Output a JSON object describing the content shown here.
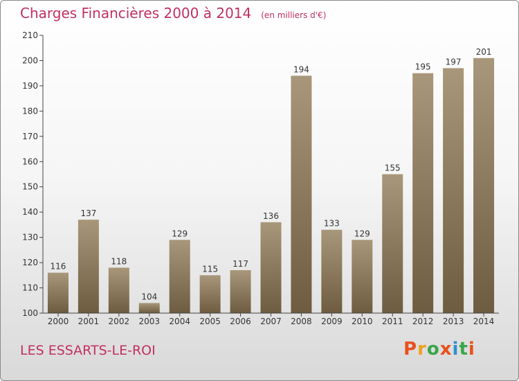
{
  "title": "Charges Financières 2000 à 2014",
  "subtitle": "(en milliers d'€)",
  "commune": "LES ESSARTS-LE-ROI",
  "logo": {
    "text": "Proxiti",
    "colors": [
      "#e8501e",
      "#f0a020",
      "#3aa54a",
      "#e8501e",
      "#2f8fd0",
      "#3aa54a",
      "#e8501e"
    ]
  },
  "colors": {
    "bar_top": "#a8977a",
    "bar_bottom": "#6e5c40",
    "title": "#c03060"
  },
  "chart_data": {
    "type": "bar",
    "categories": [
      "2000",
      "2001",
      "2002",
      "2003",
      "2004",
      "2005",
      "2006",
      "2007",
      "2008",
      "2009",
      "2010",
      "2011",
      "2012",
      "2013",
      "2014"
    ],
    "values": [
      116,
      137,
      118,
      104,
      129,
      115,
      117,
      136,
      194,
      133,
      129,
      155,
      195,
      197,
      201
    ],
    "ylim": [
      100,
      210
    ],
    "yticks": [
      100,
      110,
      120,
      130,
      140,
      150,
      160,
      170,
      180,
      190,
      200,
      210
    ],
    "grid": false,
    "legend": "none"
  }
}
